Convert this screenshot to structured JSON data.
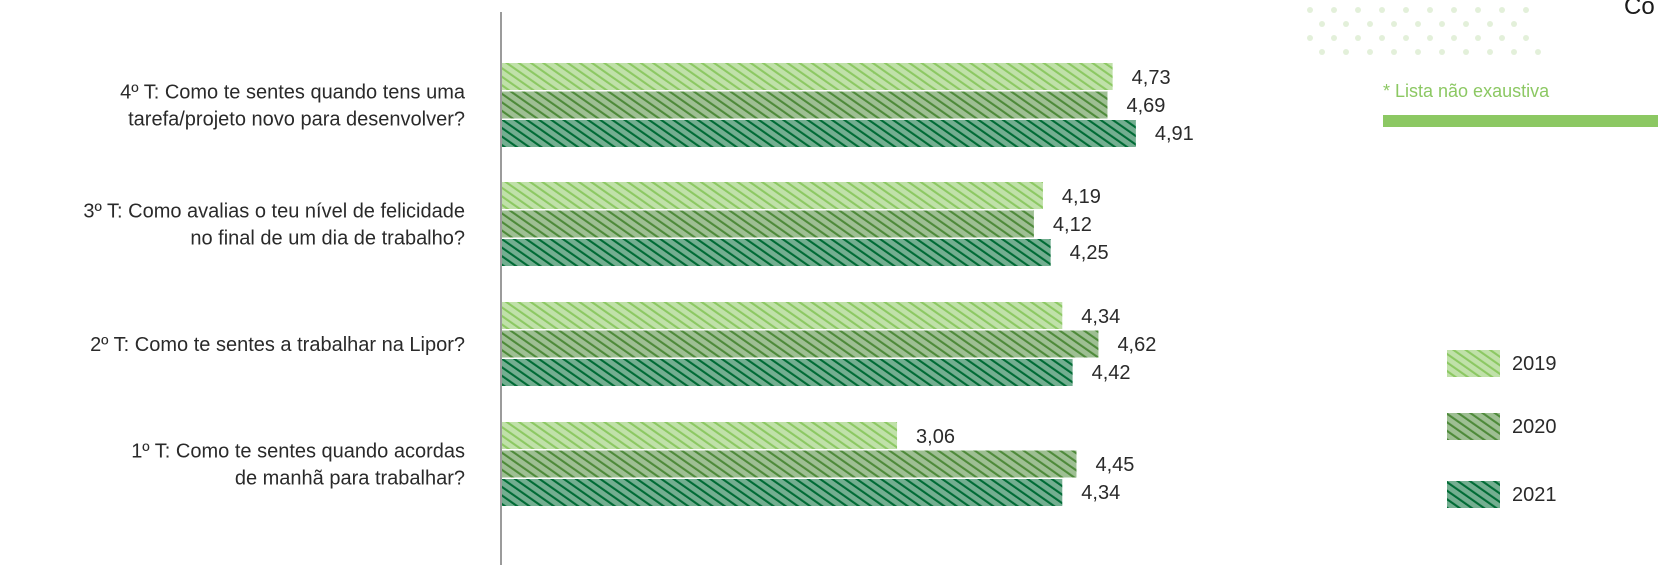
{
  "chart_data": {
    "type": "bar",
    "orientation": "horizontal",
    "categories": [
      [
        "4º T: Como te sentes quando tens uma",
        "tarefa/projeto novo para desenvolver?"
      ],
      [
        "3º T: Como avalias o teu nível de felicidade",
        "no final de um dia de trabalho?"
      ],
      [
        "2º T: Como te sentes a trabalhar na Lipor?"
      ],
      [
        "1º T: Como te sentes quando acordas",
        "de manhã para trabalhar?"
      ]
    ],
    "series": [
      {
        "name": "2019",
        "values": [
          4.73,
          4.19,
          4.34,
          3.06
        ],
        "labels": [
          "4,73",
          "4,19",
          "4,34",
          "3,06"
        ],
        "color": "#8cc863"
      },
      {
        "name": "2020",
        "values": [
          4.69,
          4.12,
          4.62,
          4.45
        ],
        "labels": [
          "4,69",
          "4,12",
          "4,62",
          "4,45"
        ],
        "color": "#4e8a3a"
      },
      {
        "name": "2021",
        "values": [
          4.91,
          4.25,
          4.42,
          4.34
        ],
        "labels": [
          "4,91",
          "4,25",
          "4,42",
          "4,34"
        ],
        "color": "#006b35"
      }
    ],
    "xlim": [
      0,
      5
    ],
    "grid": false,
    "legend_position": "right"
  },
  "note": {
    "text": "* Lista não exaustiva",
    "color": "#8cc863"
  },
  "corner": {
    "text": "Co"
  },
  "colors": {
    "background_accent": "#8cc863",
    "dots": "#e3f0da"
  }
}
